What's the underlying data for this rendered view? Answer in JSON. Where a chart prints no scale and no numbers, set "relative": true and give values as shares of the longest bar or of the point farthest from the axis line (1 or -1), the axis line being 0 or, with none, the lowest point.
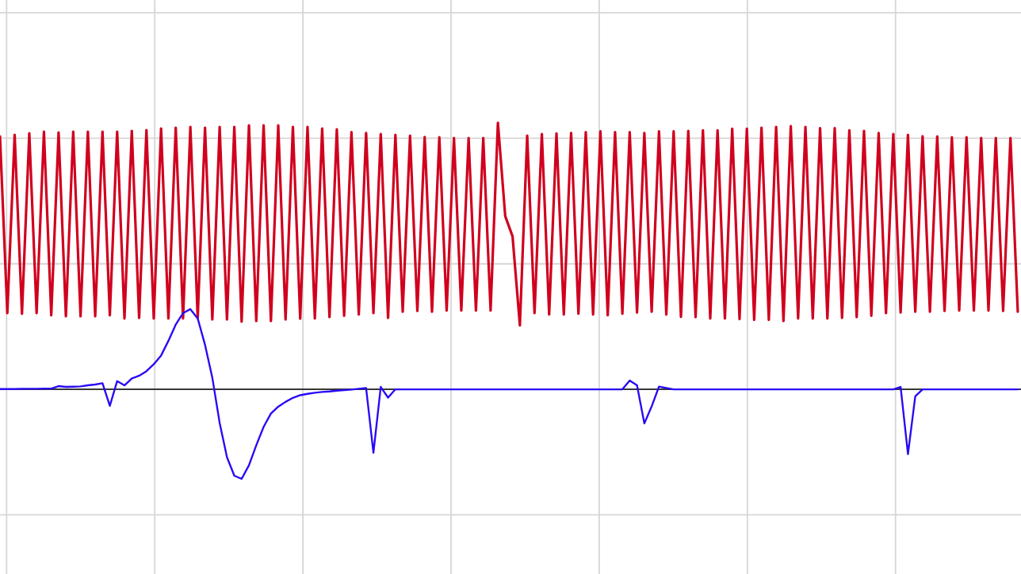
{
  "chart_data": {
    "type": "line",
    "relative": true,
    "grid": true,
    "tick_labels": false,
    "categories": [
      null,
      null,
      null,
      null,
      null,
      null,
      null,
      null,
      null,
      null,
      null,
      null,
      null,
      null,
      null,
      null,
      null,
      null,
      null,
      null,
      null,
      null,
      null,
      null,
      null,
      null,
      null,
      null,
      null,
      null,
      null,
      null,
      null,
      null,
      null,
      null,
      null,
      null,
      null,
      null,
      null,
      null,
      null,
      null,
      null,
      null,
      null,
      null,
      null,
      null,
      null,
      null,
      null,
      null,
      null,
      null,
      null,
      null,
      null,
      null,
      null,
      null,
      null,
      null,
      null,
      null,
      null,
      null,
      null,
      null,
      null,
      null,
      null,
      null,
      null,
      null,
      null,
      null,
      null,
      null,
      null,
      null,
      null,
      null,
      null,
      null,
      null,
      null,
      null,
      null,
      null,
      null,
      null,
      null,
      null,
      null,
      null,
      null,
      null,
      null,
      null,
      null,
      null,
      null,
      null,
      null,
      null,
      null,
      null,
      null,
      null,
      null,
      null,
      null,
      null,
      null,
      null,
      null,
      null,
      null,
      null,
      null,
      null,
      null,
      null,
      null,
      null,
      null,
      null,
      null,
      null,
      null,
      null,
      null,
      null,
      null,
      null,
      null,
      null,
      null
    ],
    "series": [
      {
        "color": "#d0001e",
        "values": [
          0.949,
          0.286,
          0.955,
          0.284,
          0.961,
          0.286,
          0.967,
          0.278,
          0.964,
          0.274,
          0.967,
          0.274,
          0.967,
          0.274,
          0.967,
          0.278,
          0.967,
          0.266,
          0.97,
          0.268,
          0.973,
          0.266,
          0.979,
          0.266,
          0.982,
          0.266,
          0.985,
          0.268,
          0.982,
          0.262,
          0.985,
          0.262,
          0.985,
          0.254,
          0.991,
          0.256,
          0.991,
          0.256,
          0.991,
          0.262,
          0.985,
          0.265,
          0.985,
          0.266,
          0.979,
          0.271,
          0.976,
          0.276,
          0.965,
          0.281,
          0.962,
          0.286,
          0.958,
          0.268,
          0.955,
          0.291,
          0.952,
          0.294,
          0.947,
          0.291,
          0.946,
          0.296,
          0.943,
          0.296,
          0.943,
          0.296,
          0.943,
          0.296,
          1.0,
          0.65,
          0.574,
          0.24,
          0.952,
          0.286,
          0.958,
          0.281,
          0.96,
          0.281,
          0.962,
          0.284,
          0.965,
          0.281,
          0.968,
          0.278,
          0.965,
          0.284,
          0.965,
          0.288,
          0.962,
          0.291,
          0.968,
          0.281,
          0.968,
          0.272,
          0.97,
          0.271,
          0.972,
          0.266,
          0.972,
          0.266,
          0.978,
          0.264,
          0.978,
          0.261,
          0.982,
          0.261,
          0.985,
          0.256,
          0.988,
          0.266,
          0.985,
          0.266,
          0.98,
          0.266,
          0.98,
          0.268,
          0.972,
          0.271,
          0.97,
          0.276,
          0.962,
          0.286,
          0.958,
          0.288,
          0.955,
          0.291,
          0.95,
          0.291,
          0.949,
          0.294,
          0.946,
          0.296,
          0.946,
          0.296,
          0.943,
          0.296,
          0.943,
          0.294,
          0.943,
          0.291
        ]
      },
      {
        "color": "#280af5",
        "values": [
          0.001,
          0.001,
          0.001,
          0.002,
          0.002,
          0.002,
          0.003,
          0.003,
          0.012,
          0.009,
          0.01,
          0.011,
          0.015,
          0.018,
          0.023,
          -0.062,
          0.031,
          0.015,
          0.041,
          0.051,
          0.068,
          0.094,
          0.127,
          0.182,
          0.243,
          0.286,
          0.301,
          0.266,
          0.167,
          0.043,
          -0.126,
          -0.255,
          -0.324,
          -0.336,
          -0.285,
          -0.21,
          -0.141,
          -0.091,
          -0.065,
          -0.047,
          -0.032,
          -0.022,
          -0.017,
          -0.013,
          -0.01,
          -0.008,
          -0.005,
          -0.003,
          -0.001,
          0.002,
          0.005,
          -0.238,
          0.009,
          -0.031,
          0,
          0,
          0,
          0,
          0,
          0,
          0,
          0,
          0,
          0,
          0,
          0,
          0,
          0,
          0,
          0,
          0,
          0,
          0,
          0,
          0,
          0,
          0,
          0,
          0,
          0,
          0,
          0,
          0,
          0,
          0,
          0,
          0.033,
          0.015,
          -0.128,
          -0.064,
          0.01,
          0.005,
          0,
          0,
          0,
          0,
          0,
          0,
          0,
          0,
          0,
          0,
          0,
          0,
          0,
          0,
          0,
          0,
          0,
          0,
          0,
          0,
          0,
          0,
          0,
          0,
          0,
          0,
          0,
          0,
          0,
          0,
          0,
          0.009,
          -0.243,
          -0.026,
          0,
          0,
          0,
          0,
          0,
          0,
          0,
          0,
          0,
          0,
          0,
          0,
          0,
          0
        ]
      }
    ]
  }
}
